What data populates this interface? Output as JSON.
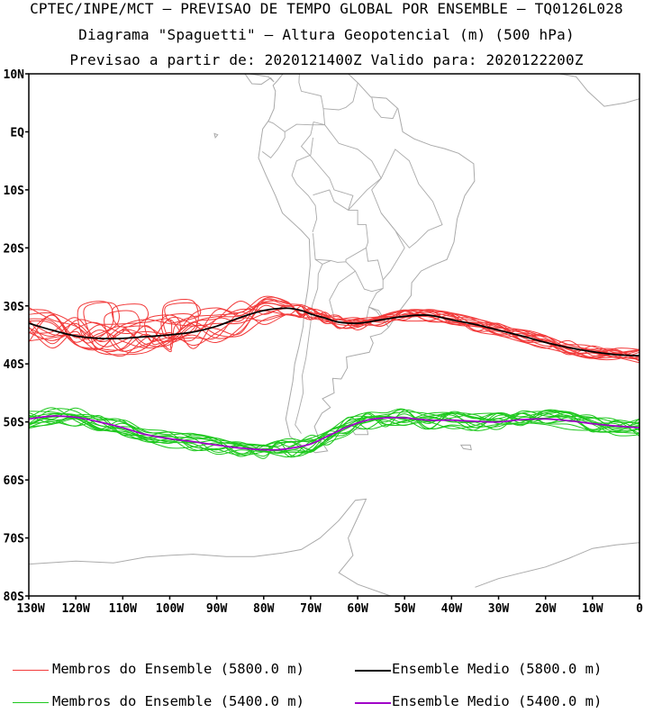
{
  "header": {
    "line1": "CPTEC/INPE/MCT – PREVISAO DE TEMPO GLOBAL POR ENSEMBLE – TQ0126L028",
    "line2": "Diagrama \"Spaguetti\" – Altura Geopotencial (m) (500 hPa)",
    "line3": "Previsao a partir de: 2020121400Z  Valido para: 2020122200Z"
  },
  "map": {
    "lat_labels": [
      "10N",
      "EQ",
      "10S",
      "20S",
      "30S",
      "40S",
      "50S",
      "60S",
      "70S",
      "80S"
    ],
    "lon_labels": [
      "130W",
      "120W",
      "110W",
      "100W",
      "90W",
      "80W",
      "70W",
      "60W",
      "50W",
      "40W",
      "30W",
      "20W",
      "10W",
      "0"
    ],
    "lon_range": [
      -130,
      0
    ],
    "lat_range": [
      -80,
      10
    ]
  },
  "legend": {
    "red_members": "Membros do Ensemble (5800.0 m)",
    "black_mean": "Ensemble Medio (5800.0 m)",
    "green_members": "Membros do Ensemble (5400.0 m)",
    "purple_mean": "Ensemble Medio (5400.0 m)"
  },
  "colors": {
    "members_5800": "#f23a3a",
    "mean_5800": "#000000",
    "members_5400": "#1ec81e",
    "mean_5400": "#a000c8",
    "coastline": "#aaaaaa"
  },
  "contours": {
    "mean_5800": [
      [
        -130,
        -33
      ],
      [
        -125,
        -34.2
      ],
      [
        -120,
        -35.2
      ],
      [
        -115,
        -35.6
      ],
      [
        -110,
        -35.6
      ],
      [
        -105,
        -35.3
      ],
      [
        -100,
        -35
      ],
      [
        -95,
        -34.5
      ],
      [
        -90,
        -33.5
      ],
      [
        -85,
        -32
      ],
      [
        -80,
        -30.8
      ],
      [
        -75,
        -30.4
      ],
      [
        -72,
        -30.8
      ],
      [
        -70,
        -31.4
      ],
      [
        -67,
        -32.1
      ],
      [
        -64,
        -32.8
      ],
      [
        -60,
        -33
      ],
      [
        -55,
        -32.4
      ],
      [
        -50,
        -31.8
      ],
      [
        -45,
        -31.6
      ],
      [
        -40,
        -32.4
      ],
      [
        -35,
        -33.2
      ],
      [
        -30,
        -34.2
      ],
      [
        -25,
        -35.2
      ],
      [
        -20,
        -36.3
      ],
      [
        -15,
        -37.2
      ],
      [
        -10,
        -37.9
      ],
      [
        -5,
        -38.4
      ],
      [
        0,
        -38.6
      ]
    ],
    "mean_5400": [
      [
        -130,
        -49.5
      ],
      [
        -125,
        -49
      ],
      [
        -120,
        -49.2
      ],
      [
        -115,
        -50
      ],
      [
        -110,
        -51
      ],
      [
        -105,
        -52.2
      ],
      [
        -100,
        -52.9
      ],
      [
        -95,
        -53.4
      ],
      [
        -90,
        -54
      ],
      [
        -85,
        -54.5
      ],
      [
        -80,
        -54.8
      ],
      [
        -77,
        -54.8
      ],
      [
        -74,
        -54.5
      ],
      [
        -70,
        -53.8
      ],
      [
        -66,
        -52.3
      ],
      [
        -62,
        -50.8
      ],
      [
        -58,
        -49.7
      ],
      [
        -54,
        -49.3
      ],
      [
        -50,
        -49.3
      ],
      [
        -45,
        -49.7
      ],
      [
        -40,
        -49.7
      ],
      [
        -35,
        -49.9
      ],
      [
        -30,
        -50
      ],
      [
        -25,
        -49.6
      ],
      [
        -20,
        -49.5
      ],
      [
        -15,
        -49.8
      ],
      [
        -10,
        -50.3
      ],
      [
        -5,
        -50.7
      ],
      [
        0,
        -51
      ]
    ]
  }
}
